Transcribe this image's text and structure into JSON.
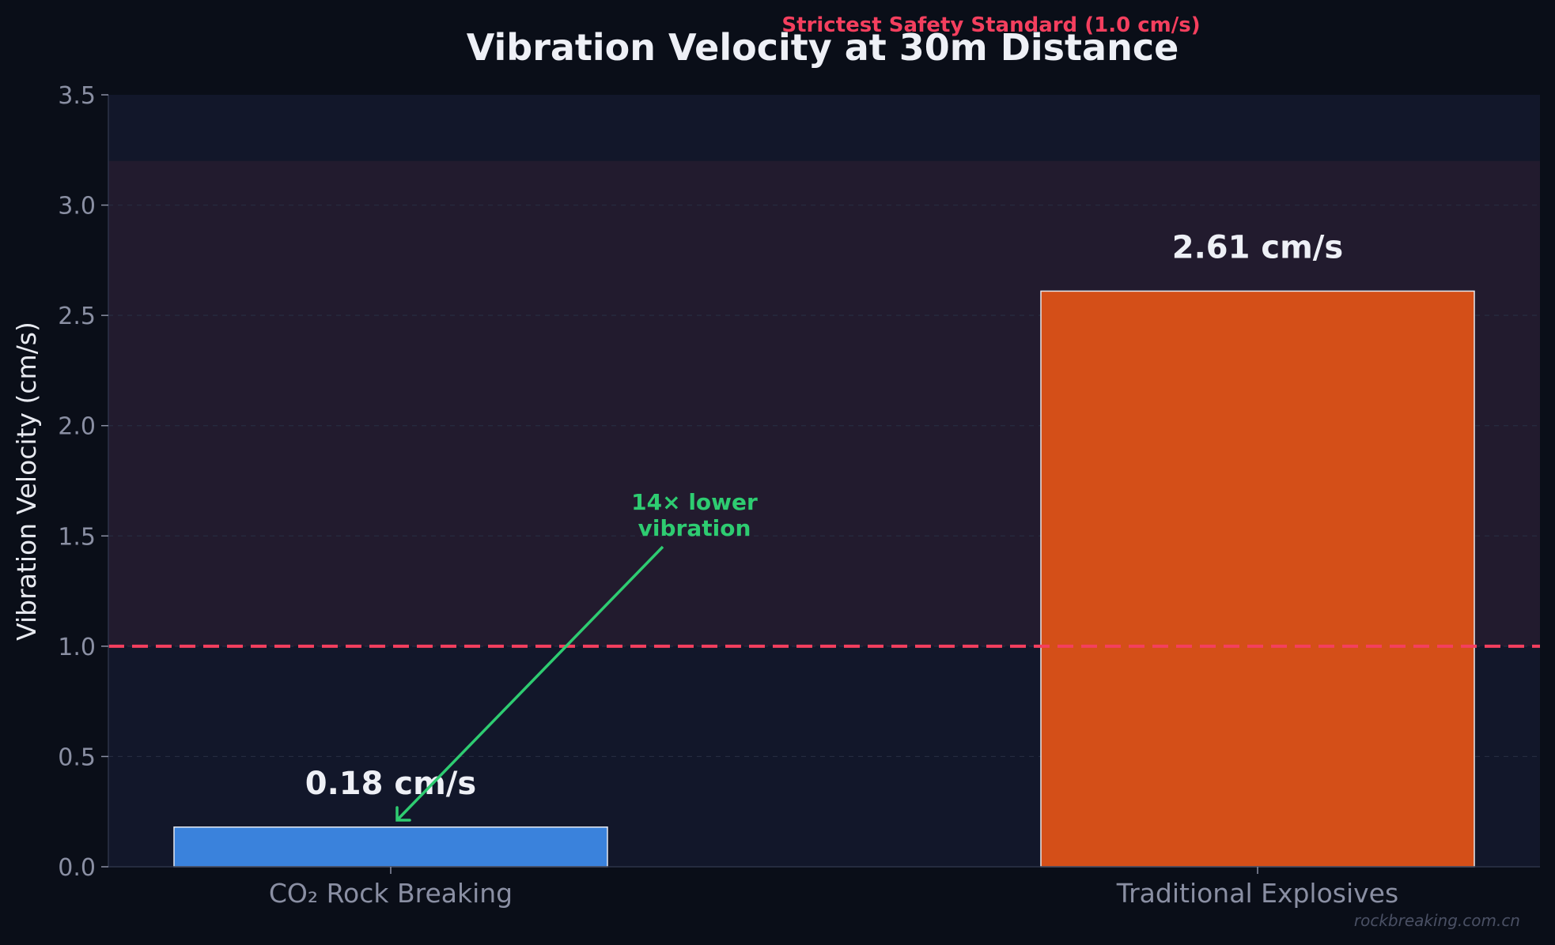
{
  "chart_data": {
    "type": "bar",
    "title": "Vibration Velocity at 30m Distance",
    "ylabel": "Vibration Velocity (cm/s)",
    "xlabel": "",
    "categories": [
      "CO₂ Rock Breaking",
      "Traditional Explosives"
    ],
    "values": [
      0.18,
      2.61
    ],
    "value_labels": [
      "0.18 cm/s",
      "2.61 cm/s"
    ],
    "ylim": [
      0,
      3.5
    ],
    "yticks": [
      "0.0",
      "0.5",
      "1.0",
      "1.5",
      "2.0",
      "2.5",
      "3.0",
      "3.5"
    ],
    "ytick_values": [
      0,
      0.5,
      1.0,
      1.5,
      2.0,
      2.5,
      3.0,
      3.5
    ],
    "grid": "horizontal dashed",
    "danger_zone": {
      "from": 1.0,
      "to": 3.2
    },
    "reference_line": {
      "value": 1.0,
      "label": "Strictest Safety Standard (1.0 cm/s)",
      "color": "#f43f5e"
    },
    "annotation": {
      "line1": "14× lower",
      "line2": "vibration",
      "color": "#2ecc71"
    },
    "colors": {
      "bar1": "#3a82dc",
      "bar2": "#d44f18",
      "background": "#0a0e18",
      "plot_bg": "#12172a",
      "danger_zone": "#221b2e"
    },
    "watermark": "rockbreaking.com.cn"
  }
}
